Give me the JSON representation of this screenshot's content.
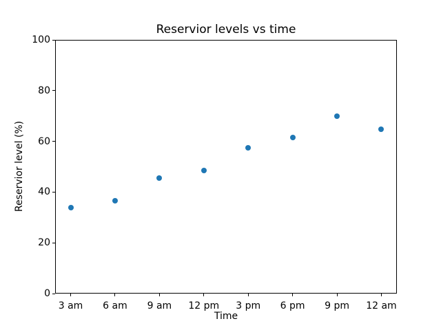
{
  "chart_data": {
    "type": "scatter",
    "title": "Reservior levels vs time",
    "xlabel": "Time",
    "ylabel": "Reservior level (%)",
    "categories": [
      "3 am",
      "6 am",
      "9 am",
      "12 pm",
      "3 pm",
      "6 pm",
      "9 pm",
      "12 am"
    ],
    "values": [
      33.9,
      36.5,
      45.6,
      48.5,
      57.5,
      61.6,
      70.0,
      64.7
    ],
    "ylim": [
      0,
      100
    ],
    "yticks": [
      0,
      20,
      40,
      60,
      80,
      100
    ],
    "grid": false,
    "legend": "none",
    "marker_color": "#1f77b4",
    "background_color": "#ffffff",
    "axis_color": "#000000"
  }
}
